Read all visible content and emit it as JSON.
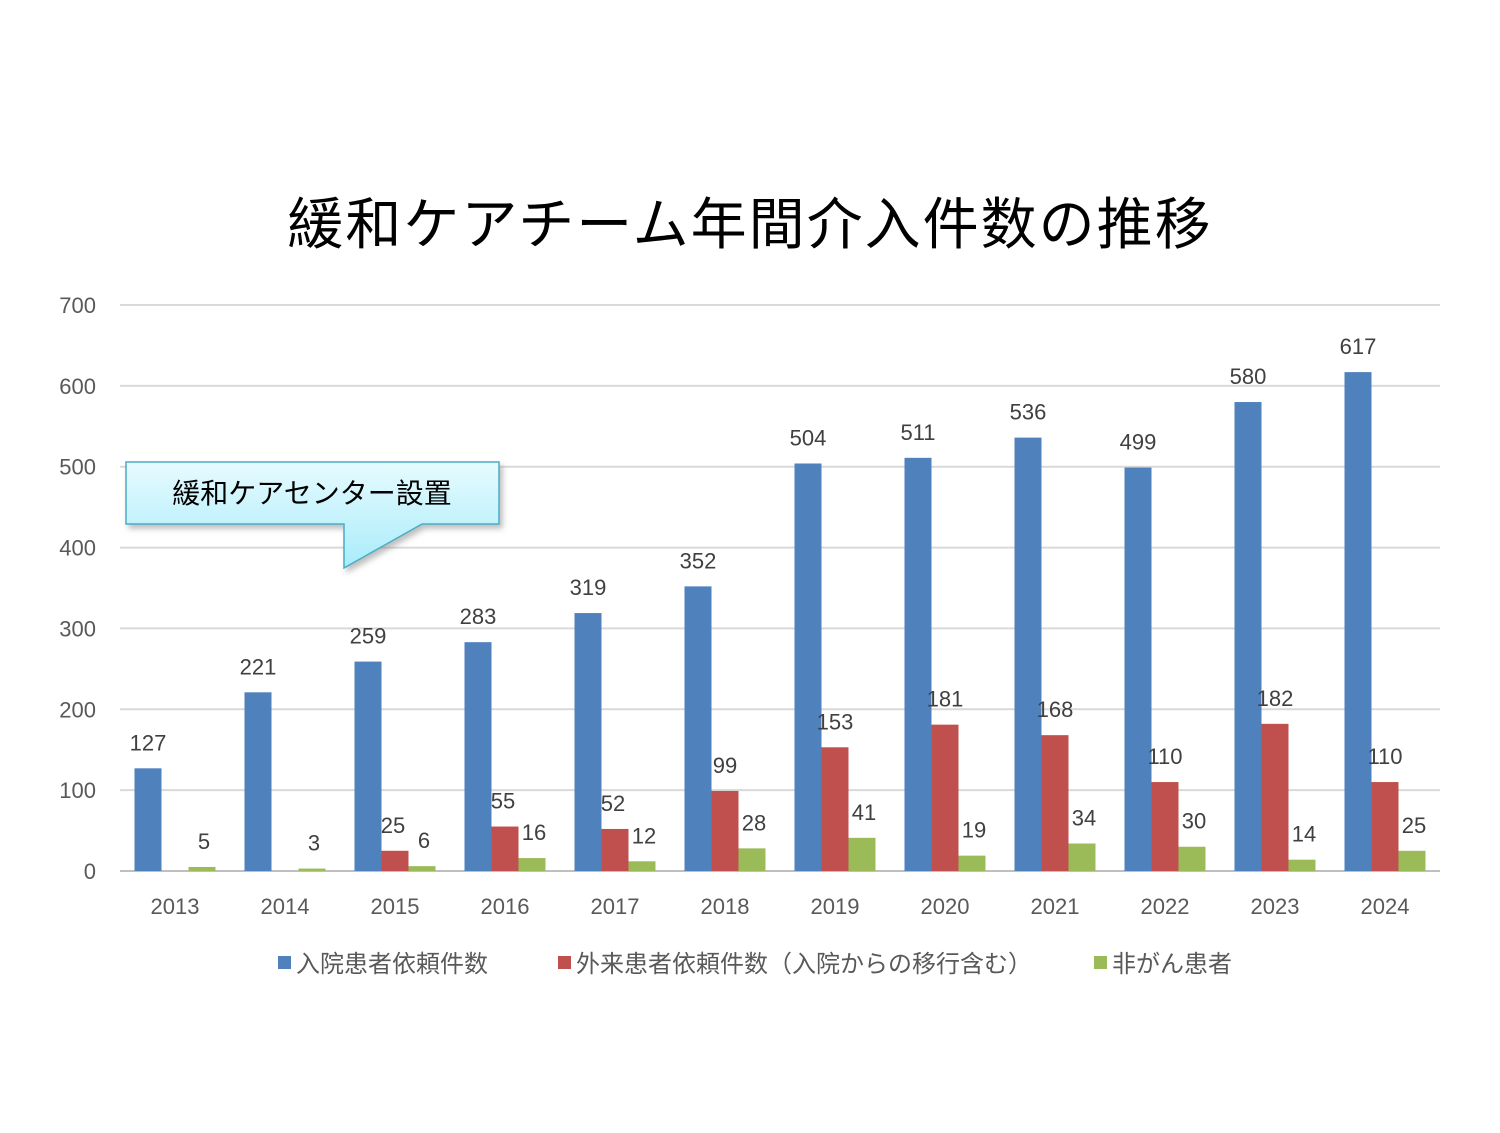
{
  "page": {
    "title": "緩和ケアチーム年間介入件数の推移"
  },
  "callout": {
    "text": "緩和ケアセンター設置"
  },
  "chart_data": {
    "type": "bar",
    "title": "緩和ケアチーム年間介入件数の推移",
    "categories": [
      "2013",
      "2014",
      "2015",
      "2016",
      "2017",
      "2018",
      "2019",
      "2020",
      "2021",
      "2022",
      "2023",
      "2024"
    ],
    "series": [
      {
        "name": "入院患者依頼件数",
        "color": "#4F81BD",
        "values": [
          127,
          221,
          259,
          283,
          319,
          352,
          504,
          511,
          536,
          499,
          580,
          617
        ]
      },
      {
        "name": "外来患者依頼件数（入院からの移行含む）",
        "color": "#C0504D",
        "values": [
          null,
          null,
          25,
          55,
          52,
          99,
          153,
          181,
          168,
          110,
          182,
          110
        ]
      },
      {
        "name": "非がん患者",
        "color": "#9BBB59",
        "values": [
          5,
          3,
          6,
          16,
          12,
          28,
          41,
          19,
          34,
          30,
          14,
          25
        ]
      }
    ],
    "ylim": [
      0,
      700
    ],
    "yticks": [
      0,
      100,
      200,
      300,
      400,
      500,
      600,
      700
    ],
    "grid": true,
    "legend_position": "bottom"
  }
}
